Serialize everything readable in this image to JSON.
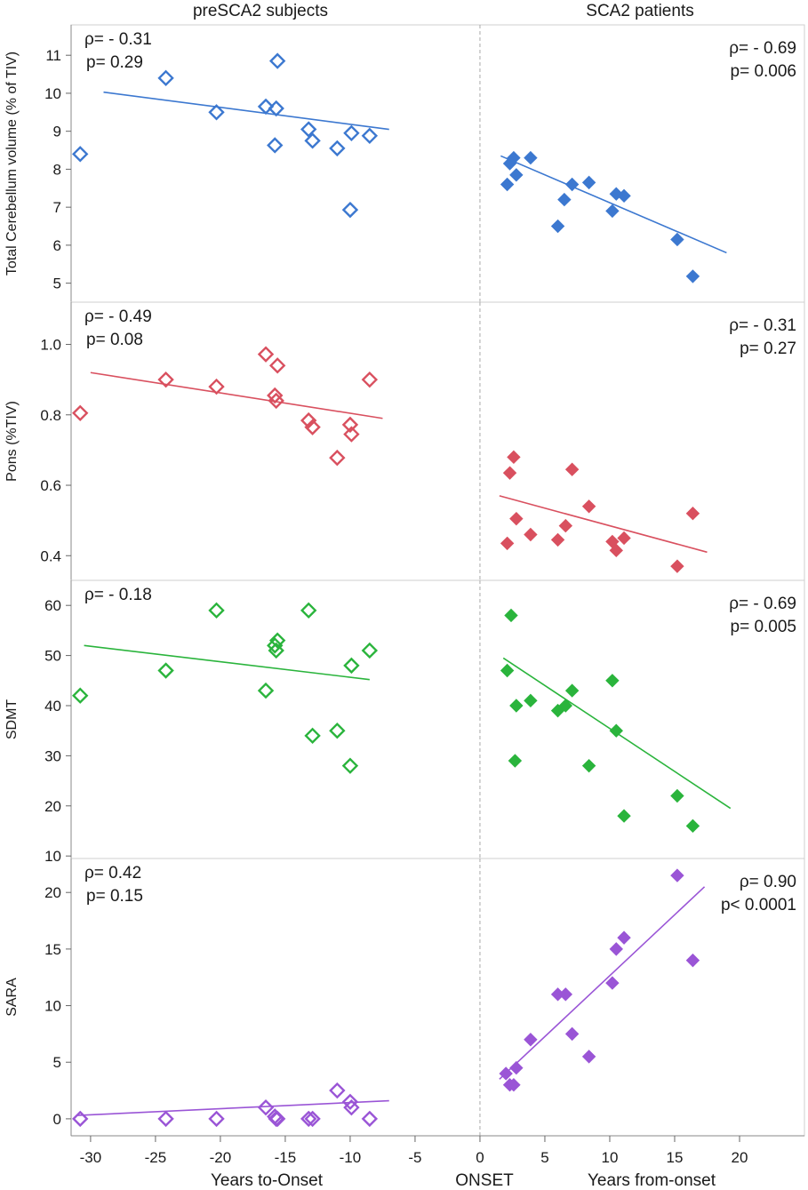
{
  "figure": {
    "left_header": "preSCA2 subjects",
    "right_header": "SCA2 patients",
    "xlabel_left": "Years to-Onset",
    "xlabel_center": "ONSET",
    "xlabel_right": "Years from-onset",
    "x_ticks": [
      -30,
      -25,
      -20,
      -15,
      -10,
      -5,
      0,
      5,
      10,
      15,
      20
    ],
    "x_range": [
      -31.5,
      25
    ]
  },
  "chart_data": [
    {
      "type": "scatter",
      "ylabel": "Total Cerebellum volume (% of TIV)",
      "color": "#3c78d0",
      "ylim": [
        4.5,
        11.8
      ],
      "y_ticks": [
        5,
        6,
        7,
        8,
        9,
        10,
        11
      ],
      "decimals": 0,
      "pre": {
        "marker": "open-diamond",
        "x": [
          -30.8,
          -24.2,
          -20.3,
          -16.5,
          -15.8,
          -15.7,
          -15.6,
          -13.2,
          -12.9,
          -11.0,
          -10.0,
          -9.9,
          -8.5
        ],
        "y": [
          8.4,
          10.4,
          9.5,
          9.65,
          8.63,
          9.6,
          10.85,
          9.05,
          8.75,
          8.55,
          6.93,
          8.95,
          8.88
        ],
        "fit": {
          "x": [
            -29,
            -7
          ],
          "y": [
            10.03,
            9.05
          ]
        },
        "rho": "ρ= - 0.31",
        "p": "p= 0.29",
        "label_pos": "top-left"
      },
      "post": {
        "marker": "filled-diamond",
        "x": [
          2.1,
          2.3,
          2.6,
          2.8,
          3.9,
          6.0,
          6.5,
          7.1,
          8.4,
          10.2,
          10.5,
          11.1,
          15.2,
          16.4
        ],
        "y": [
          7.6,
          8.15,
          8.3,
          7.85,
          8.3,
          6.5,
          7.2,
          7.6,
          7.65,
          6.9,
          7.35,
          7.3,
          6.15,
          5.18
        ],
        "fit": {
          "x": [
            1.6,
            19.0
          ],
          "y": [
            8.35,
            5.8
          ]
        },
        "rho": "ρ= - 0.69",
        "p": "p= 0.006",
        "label_pos": "top-right"
      }
    },
    {
      "type": "scatter",
      "ylabel": "Pons (%TIV)",
      "color": "#d9505f",
      "ylim": [
        0.33,
        1.12
      ],
      "y_ticks": [
        0.4,
        0.6,
        0.8,
        1.0
      ],
      "decimals": 1,
      "pre": {
        "marker": "open-diamond",
        "x": [
          -30.8,
          -24.2,
          -20.3,
          -16.5,
          -15.8,
          -15.7,
          -15.6,
          -13.2,
          -12.9,
          -11.0,
          -10.0,
          -9.9,
          -8.5
        ],
        "y": [
          0.805,
          0.9,
          0.88,
          0.972,
          0.855,
          0.84,
          0.94,
          0.784,
          0.765,
          0.678,
          0.772,
          0.745,
          0.9
        ],
        "fit": {
          "x": [
            -30,
            -7.5
          ],
          "y": [
            0.92,
            0.79
          ]
        },
        "rho": "ρ= - 0.49",
        "p": "p= 0.08",
        "label_pos": "top-left"
      },
      "post": {
        "marker": "filled-diamond",
        "x": [
          2.1,
          2.3,
          2.6,
          2.8,
          3.9,
          6.0,
          6.6,
          7.1,
          8.4,
          10.2,
          10.5,
          11.1,
          15.2,
          16.4
        ],
        "y": [
          0.435,
          0.635,
          0.68,
          0.505,
          0.46,
          0.445,
          0.485,
          0.645,
          0.54,
          0.44,
          0.415,
          0.45,
          0.37,
          0.52
        ],
        "fit": {
          "x": [
            1.5,
            17.5
          ],
          "y": [
            0.57,
            0.41
          ]
        },
        "rho": "ρ= - 0.31",
        "p": "p= 0.27",
        "label_pos": "top-right"
      }
    },
    {
      "type": "scatter",
      "ylabel": "SDMT",
      "color": "#2ab43c",
      "ylim": [
        9.5,
        65
      ],
      "y_ticks": [
        10,
        20,
        30,
        40,
        50,
        60
      ],
      "decimals": 0,
      "pre": {
        "marker": "open-diamond",
        "x": [
          -30.8,
          -24.2,
          -20.3,
          -16.5,
          -15.8,
          -15.7,
          -15.6,
          -13.2,
          -12.9,
          -11.0,
          -10.0,
          -9.9,
          -8.5
        ],
        "y": [
          42,
          47,
          59,
          43,
          52,
          51,
          53,
          59,
          34,
          35,
          28,
          48,
          51
        ],
        "fit": {
          "x": [
            -30.5,
            -8.5
          ],
          "y": [
            52,
            45.2
          ]
        },
        "rho": "ρ= - 0.18",
        "p": "",
        "label_pos": "top-left"
      },
      "post": {
        "marker": "filled-diamond",
        "x": [
          2.1,
          2.4,
          2.7,
          2.8,
          3.9,
          6.0,
          6.6,
          7.1,
          8.4,
          10.2,
          10.5,
          11.1,
          15.2,
          16.4
        ],
        "y": [
          47,
          58,
          29,
          40,
          41,
          39,
          40,
          43,
          28,
          45,
          35,
          18,
          22,
          16
        ],
        "fit": {
          "x": [
            1.8,
            19.3
          ],
          "y": [
            49.5,
            19.5
          ]
        },
        "rho": "ρ= - 0.69",
        "p": "p= 0.005",
        "label_pos": "top-right"
      }
    },
    {
      "type": "scatter",
      "ylabel": "SARA",
      "color": "#9a55d6",
      "ylim": [
        -1.5,
        23
      ],
      "y_ticks": [
        0,
        5,
        10,
        15,
        20
      ],
      "decimals": 0,
      "pre": {
        "marker": "open-diamond",
        "x": [
          -30.8,
          -24.2,
          -20.3,
          -16.5,
          -15.8,
          -15.7,
          -15.6,
          -13.2,
          -12.9,
          -11.0,
          -10.0,
          -9.9,
          -8.5
        ],
        "y": [
          0,
          0,
          0,
          1,
          0.2,
          0,
          0,
          0,
          0,
          2.5,
          1.5,
          1,
          0
        ],
        "fit": {
          "x": [
            -31,
            -7
          ],
          "y": [
            0.3,
            1.6
          ]
        },
        "rho": "ρ=  0.42",
        "p": "p= 0.15",
        "label_pos": "top-left"
      },
      "post": {
        "marker": "filled-diamond",
        "x": [
          2.0,
          2.3,
          2.6,
          2.8,
          3.9,
          6.0,
          6.6,
          7.1,
          8.4,
          10.2,
          10.5,
          11.1,
          15.2,
          16.4
        ],
        "y": [
          4,
          3,
          3,
          4.5,
          7,
          11,
          11,
          7.5,
          5.5,
          12,
          15,
          16,
          21.5,
          14
        ],
        "fit": {
          "x": [
            1.5,
            17.3
          ],
          "y": [
            3.5,
            20.5
          ]
        },
        "rho": "ρ=  0.90",
        "p": "p< 0.0001",
        "label_pos": "top-right"
      }
    }
  ]
}
